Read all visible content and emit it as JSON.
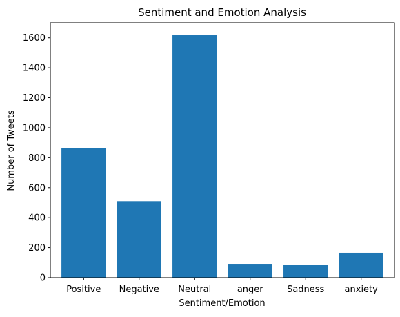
{
  "chart_data": {
    "type": "bar",
    "title": "Sentiment and Emotion Analysis",
    "xlabel": "Sentiment/Emotion",
    "ylabel": "Number of Tweets",
    "categories": [
      "Positive",
      "Negative",
      "Neutral",
      "anger",
      "Sadness",
      "anxiety"
    ],
    "values": [
      862,
      510,
      1617,
      92,
      87,
      166
    ],
    "ylim": [
      0,
      1700
    ],
    "yticks": [
      0,
      200,
      400,
      600,
      800,
      1000,
      1200,
      1400,
      1600
    ],
    "bar_color": "#1f77b4",
    "grid": false,
    "legend": false
  }
}
